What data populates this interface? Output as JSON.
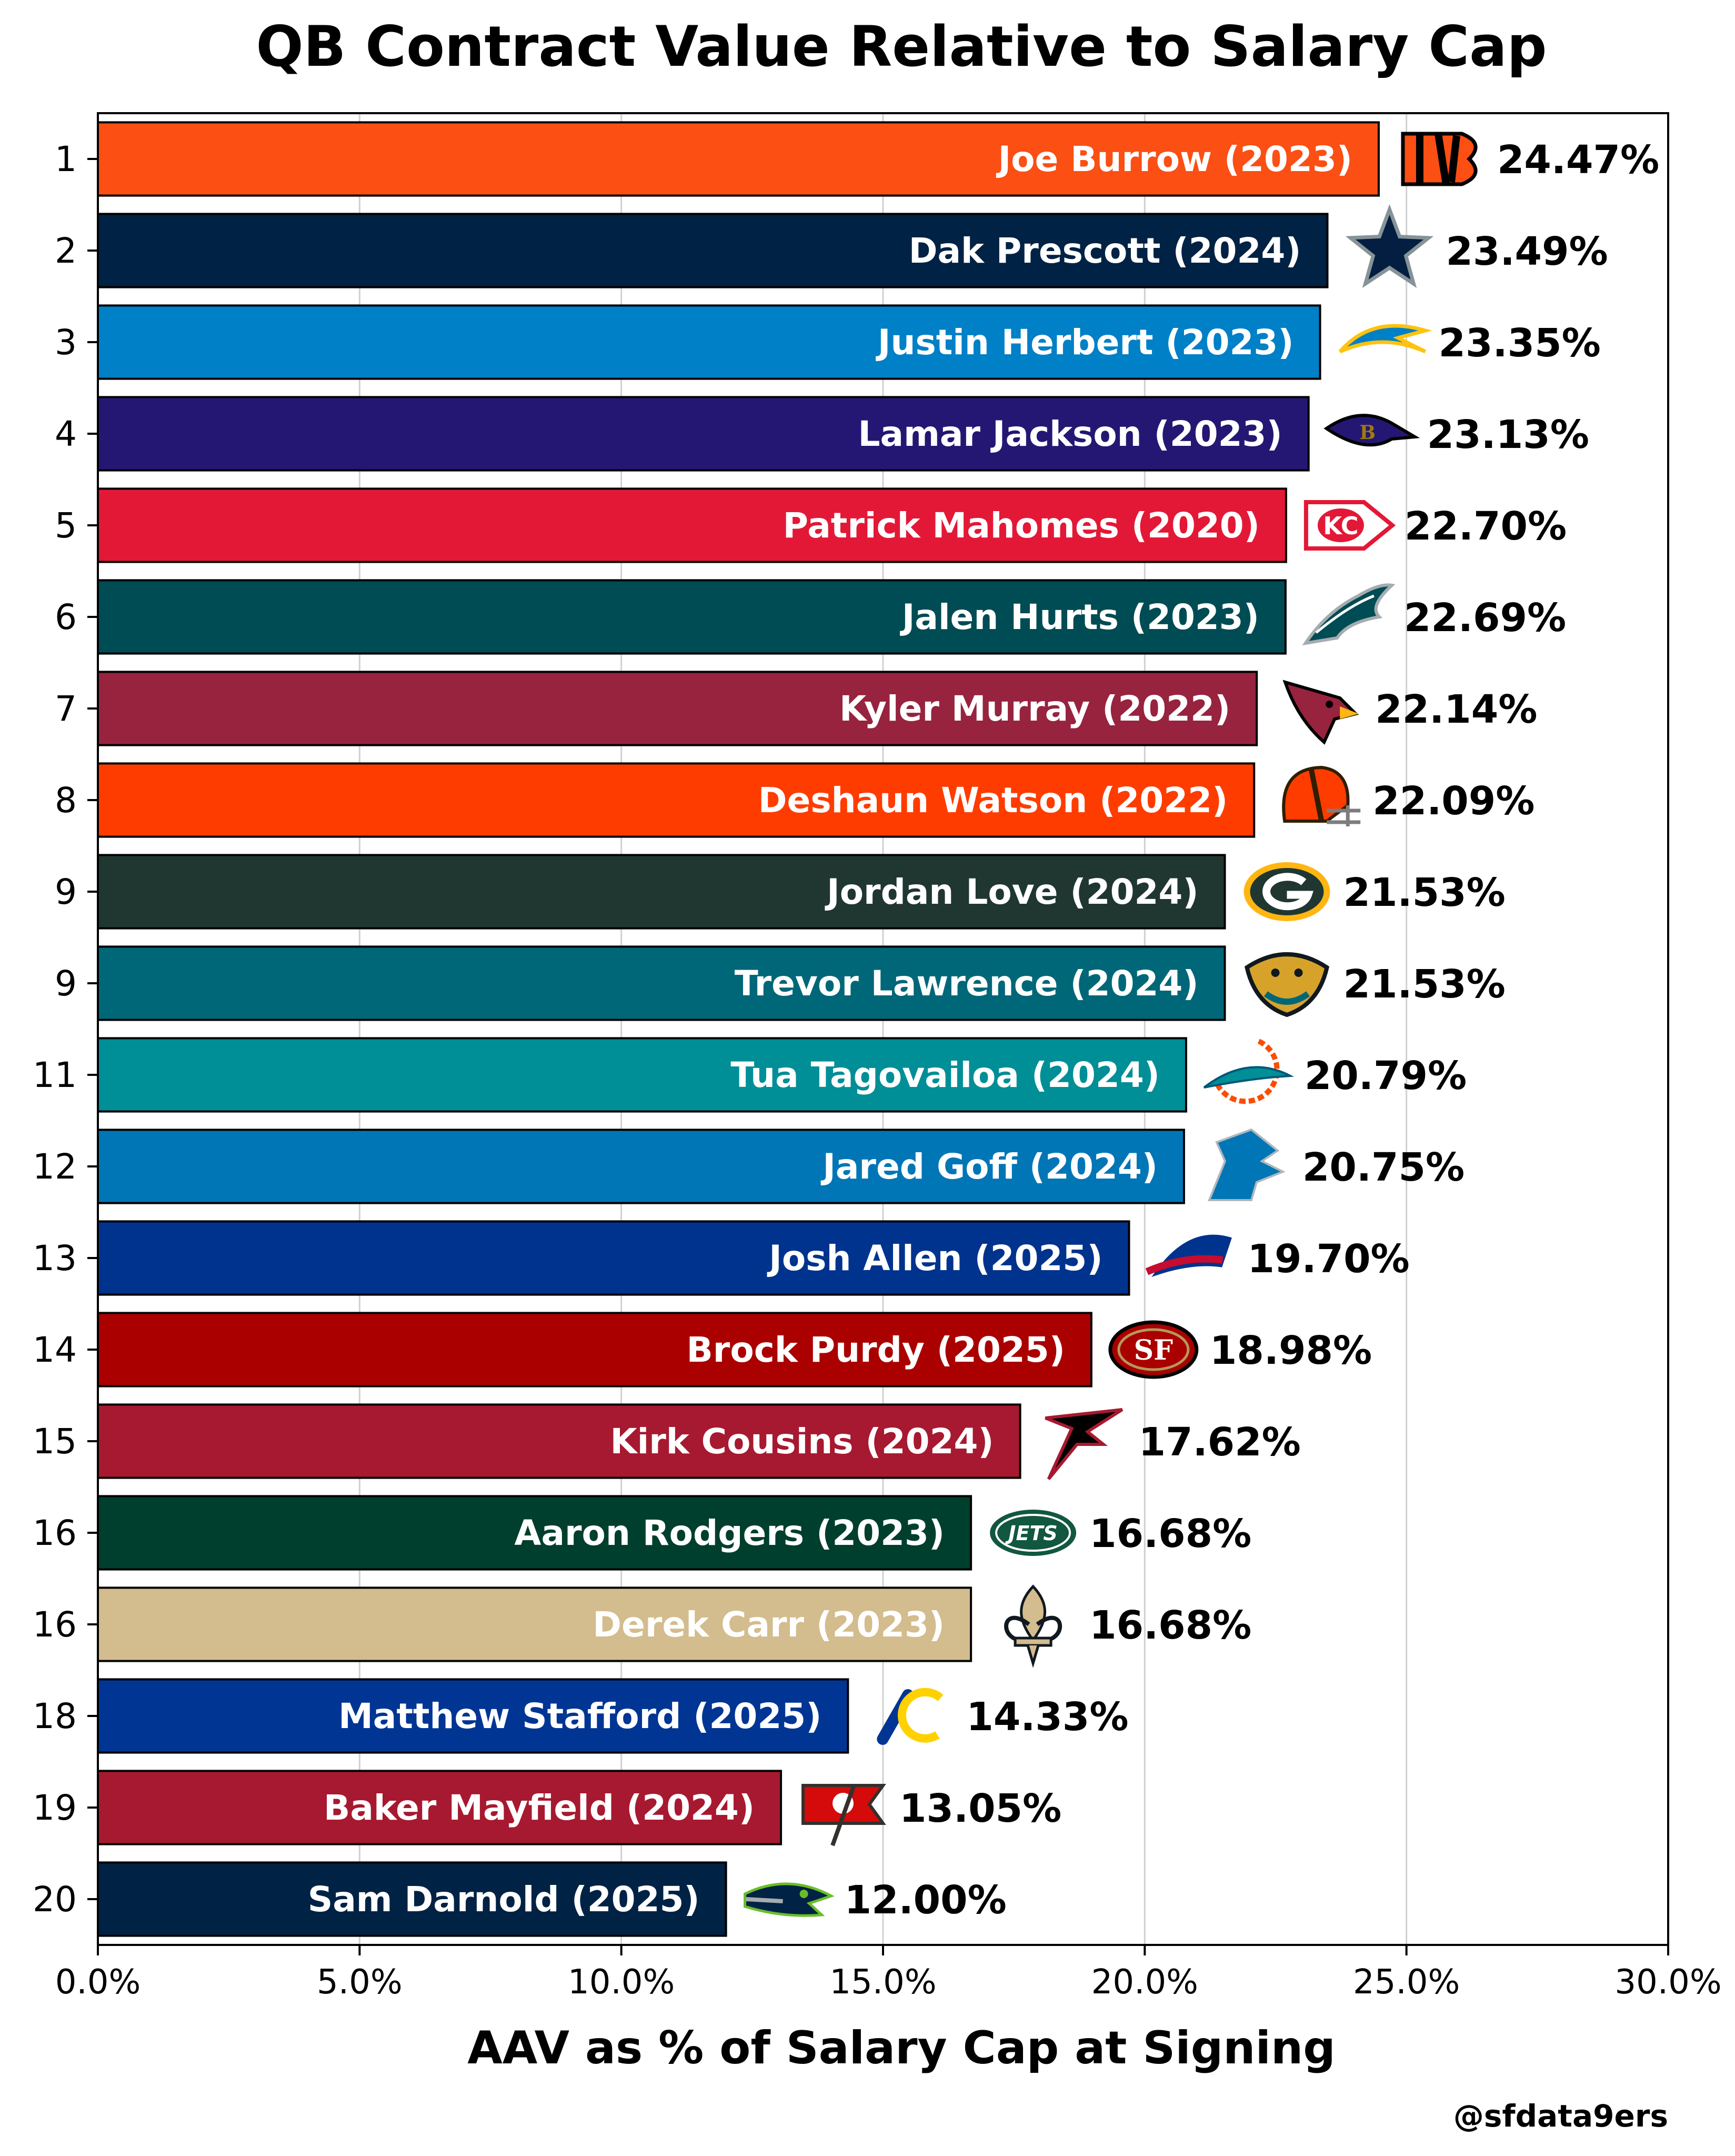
{
  "chart_data": {
    "type": "bar",
    "orientation": "horizontal",
    "title": "QB Contract Value Relative to Salary Cap",
    "xlabel": "AAV as % of Salary Cap at Signing",
    "xlim": [
      0,
      30
    ],
    "x_ticks": [
      "0.0%",
      "5.0%",
      "10.0%",
      "15.0%",
      "20.0%",
      "25.0%",
      "30.0%"
    ],
    "grid": "vertical",
    "credit": "@sfdata9ers",
    "bars": [
      {
        "rank": "1",
        "label": "Joe Burrow (2023)",
        "value": 24.47,
        "value_label": "24.47%",
        "color": "#FB4F14",
        "icon": "bengals-logo-icon"
      },
      {
        "rank": "2",
        "label": "Dak Prescott (2024)",
        "value": 23.49,
        "value_label": "23.49%",
        "color": "#002244",
        "icon": "cowboys-star-icon"
      },
      {
        "rank": "3",
        "label": "Justin Herbert (2023)",
        "value": 23.35,
        "value_label": "23.35%",
        "color": "#0080C6",
        "icon": "chargers-bolt-icon"
      },
      {
        "rank": "4",
        "label": "Lamar Jackson (2023)",
        "value": 23.13,
        "value_label": "23.13%",
        "color": "#241773",
        "icon": "ravens-logo-icon"
      },
      {
        "rank": "5",
        "label": "Patrick Mahomes (2020)",
        "value": 22.7,
        "value_label": "22.70%",
        "color": "#E31837",
        "icon": "chiefs-arrowhead-icon"
      },
      {
        "rank": "6",
        "label": "Jalen Hurts (2023)",
        "value": 22.69,
        "value_label": "22.69%",
        "color": "#004C54",
        "icon": "eagles-logo-icon"
      },
      {
        "rank": "7",
        "label": "Kyler Murray (2022)",
        "value": 22.14,
        "value_label": "22.14%",
        "color": "#97233F",
        "icon": "cardinals-logo-icon"
      },
      {
        "rank": "8",
        "label": "Deshaun Watson (2022)",
        "value": 22.09,
        "value_label": "22.09%",
        "color": "#FF3C00",
        "icon": "browns-helmet-icon"
      },
      {
        "rank": "9",
        "label": "Jordan Love (2024)",
        "value": 21.53,
        "value_label": "21.53%",
        "color": "#203731",
        "icon": "packers-g-icon"
      },
      {
        "rank": "9",
        "label": "Trevor Lawrence (2024)",
        "value": 21.53,
        "value_label": "21.53%",
        "color": "#006778",
        "icon": "jaguars-logo-icon"
      },
      {
        "rank": "11",
        "label": "Tua Tagovailoa (2024)",
        "value": 20.79,
        "value_label": "20.79%",
        "color": "#008E97",
        "icon": "dolphins-logo-icon"
      },
      {
        "rank": "12",
        "label": "Jared Goff (2024)",
        "value": 20.75,
        "value_label": "20.75%",
        "color": "#0076B6",
        "icon": "lions-logo-icon"
      },
      {
        "rank": "13",
        "label": "Josh Allen (2025)",
        "value": 19.7,
        "value_label": "19.70%",
        "color": "#00338D",
        "icon": "bills-logo-icon"
      },
      {
        "rank": "14",
        "label": "Brock Purdy (2025)",
        "value": 18.98,
        "value_label": "18.98%",
        "color": "#AA0000",
        "icon": "49ers-logo-icon"
      },
      {
        "rank": "15",
        "label": "Kirk Cousins (2024)",
        "value": 17.62,
        "value_label": "17.62%",
        "color": "#A71930",
        "icon": "falcons-logo-icon"
      },
      {
        "rank": "16",
        "label": "Aaron Rodgers (2023)",
        "value": 16.68,
        "value_label": "16.68%",
        "color": "#003F2D",
        "icon": "jets-logo-icon"
      },
      {
        "rank": "16",
        "label": "Derek Carr (2023)",
        "value": 16.68,
        "value_label": "16.68%",
        "color": "#D3BC8D",
        "icon": "saints-fleur-de-lis-icon"
      },
      {
        "rank": "18",
        "label": "Matthew Stafford (2025)",
        "value": 14.33,
        "value_label": "14.33%",
        "color": "#003594",
        "icon": "rams-logo-icon"
      },
      {
        "rank": "19",
        "label": "Baker Mayfield (2024)",
        "value": 13.05,
        "value_label": "13.05%",
        "color": "#A71930",
        "icon": "buccaneers-flag-icon"
      },
      {
        "rank": "20",
        "label": "Sam Darnold (2025)",
        "value": 12.0,
        "value_label": "12.00%",
        "color": "#002244",
        "icon": "seahawks-logo-icon"
      }
    ]
  }
}
